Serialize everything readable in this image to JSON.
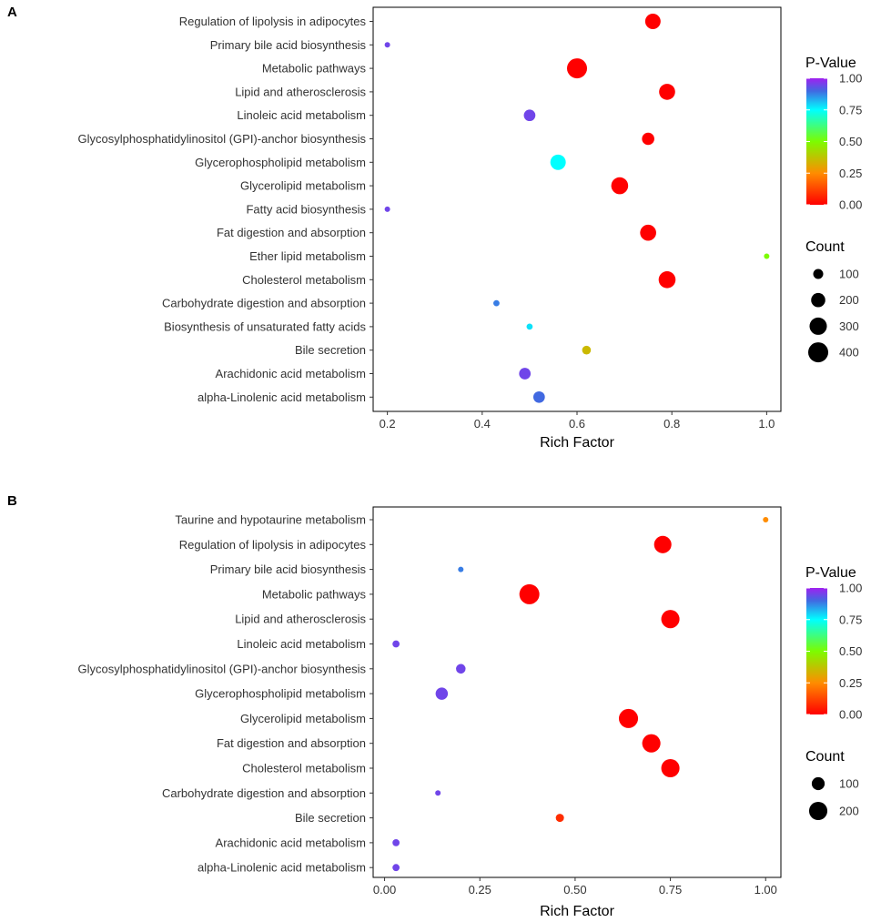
{
  "chart_data": [
    {
      "panel": "A",
      "type": "scatter",
      "xlabel": "Rich Factor",
      "xlim": [
        0.17,
        1.03
      ],
      "xticks": [
        0.2,
        0.4,
        0.6,
        0.8,
        1.0
      ],
      "xtick_labels": [
        "0.2",
        "0.4",
        "0.6",
        "0.8",
        "1.0"
      ],
      "categories": [
        "Regulation of lipolysis in adipocytes",
        "Primary bile acid biosynthesis",
        "Metabolic pathways",
        "Lipid and atherosclerosis",
        "Linoleic acid metabolism",
        "Glycosylphosphatidylinositol (GPI)-anchor biosynthesis",
        "Glycerophospholipid metabolism",
        "Glycerolipid metabolism",
        "Fatty acid biosynthesis",
        "Fat digestion and absorption",
        "Ether lipid metabolism",
        "Cholesterol metabolism",
        "Carbohydrate digestion and absorption",
        "Biosynthesis of unsaturated fatty acids",
        "Bile secretion",
        "Arachidonic acid metabolism",
        "alpha-Linolenic acid metabolism"
      ],
      "points": [
        {
          "category": "Regulation of lipolysis in adipocytes",
          "rich_factor": 0.76,
          "p_value": 0.0,
          "count": 250
        },
        {
          "category": "Primary bile acid biosynthesis",
          "rich_factor": 0.2,
          "p_value": 0.95,
          "count": 25
        },
        {
          "category": "Metabolic pathways",
          "rich_factor": 0.6,
          "p_value": 0.0,
          "count": 420
        },
        {
          "category": "Lipid and atherosclerosis",
          "rich_factor": 0.79,
          "p_value": 0.0,
          "count": 270
        },
        {
          "category": "Linoleic acid metabolism",
          "rich_factor": 0.5,
          "p_value": 0.95,
          "count": 140
        },
        {
          "category": "Glycosylphosphatidylinositol (GPI)-anchor biosynthesis",
          "rich_factor": 0.75,
          "p_value": 0.0,
          "count": 160
        },
        {
          "category": "Glycerophospholipid metabolism",
          "rich_factor": 0.56,
          "p_value": 0.75,
          "count": 250
        },
        {
          "category": "Glycerolipid metabolism",
          "rich_factor": 0.69,
          "p_value": 0.0,
          "count": 300
        },
        {
          "category": "Fatty acid biosynthesis",
          "rich_factor": 0.2,
          "p_value": 0.95,
          "count": 25
        },
        {
          "category": "Fat digestion and absorption",
          "rich_factor": 0.75,
          "p_value": 0.0,
          "count": 270
        },
        {
          "category": "Ether lipid metabolism",
          "rich_factor": 1.0,
          "p_value": 0.5,
          "count": 25
        },
        {
          "category": "Cholesterol metabolism",
          "rich_factor": 0.79,
          "p_value": 0.0,
          "count": 300
        },
        {
          "category": "Carbohydrate digestion and absorption",
          "rich_factor": 0.43,
          "p_value": 0.88,
          "count": 40
        },
        {
          "category": "Biosynthesis of unsaturated fatty acids",
          "rich_factor": 0.5,
          "p_value": 0.78,
          "count": 40
        },
        {
          "category": "Bile secretion",
          "rich_factor": 0.62,
          "p_value": 0.35,
          "count": 80
        },
        {
          "category": "Arachidonic acid metabolism",
          "rich_factor": 0.49,
          "p_value": 0.95,
          "count": 140
        },
        {
          "category": "alpha-Linolenic acid metabolism",
          "rich_factor": 0.52,
          "p_value": 0.9,
          "count": 140
        }
      ],
      "legend": {
        "color_title": "P-Value",
        "color_ticks": [
          "1.00",
          "0.75",
          "0.50",
          "0.25",
          "0.00"
        ],
        "size_title": "Count",
        "size_ticks": [
          100,
          200,
          300,
          400
        ],
        "size_tick_labels": [
          "100",
          "200",
          "300",
          "400"
        ]
      }
    },
    {
      "panel": "B",
      "type": "scatter",
      "xlabel": "Rich Factor",
      "xlim": [
        -0.03,
        1.04
      ],
      "xticks": [
        0.0,
        0.25,
        0.5,
        0.75,
        1.0
      ],
      "xtick_labels": [
        "0.00",
        "0.25",
        "0.50",
        "0.75",
        "1.00"
      ],
      "categories": [
        "Taurine and hypotaurine metabolism",
        "Regulation of lipolysis in adipocytes",
        "Primary bile acid biosynthesis",
        "Metabolic pathways",
        "Lipid and atherosclerosis",
        "Linoleic acid metabolism",
        "Glycosylphosphatidylinositol (GPI)-anchor biosynthesis",
        "Glycerophospholipid metabolism",
        "Glycerolipid metabolism",
        "Fat digestion and absorption",
        "Cholesterol metabolism",
        "Carbohydrate digestion and absorption",
        "Bile secretion",
        "Arachidonic acid metabolism",
        "alpha-Linolenic acid metabolism"
      ],
      "points": [
        {
          "category": "Taurine and hypotaurine metabolism",
          "rich_factor": 1.0,
          "p_value": 0.25,
          "count": 12
        },
        {
          "category": "Regulation of lipolysis in adipocytes",
          "rich_factor": 0.73,
          "p_value": 0.0,
          "count": 180
        },
        {
          "category": "Primary bile acid biosynthesis",
          "rich_factor": 0.2,
          "p_value": 0.88,
          "count": 12
        },
        {
          "category": "Metabolic pathways",
          "rich_factor": 0.38,
          "p_value": 0.0,
          "count": 240
        },
        {
          "category": "Lipid and atherosclerosis",
          "rich_factor": 0.75,
          "p_value": 0.0,
          "count": 200
        },
        {
          "category": "Linoleic acid metabolism",
          "rich_factor": 0.03,
          "p_value": 0.95,
          "count": 30
        },
        {
          "category": "Glycosylphosphatidylinositol (GPI)-anchor biosynthesis",
          "rich_factor": 0.2,
          "p_value": 0.95,
          "count": 55
        },
        {
          "category": "Glycerophospholipid metabolism",
          "rich_factor": 0.15,
          "p_value": 0.95,
          "count": 90
        },
        {
          "category": "Glycerolipid metabolism",
          "rich_factor": 0.64,
          "p_value": 0.0,
          "count": 220
        },
        {
          "category": "Fat digestion and absorption",
          "rich_factor": 0.7,
          "p_value": 0.0,
          "count": 200
        },
        {
          "category": "Cholesterol metabolism",
          "rich_factor": 0.75,
          "p_value": 0.0,
          "count": 200
        },
        {
          "category": "Carbohydrate digestion and absorption",
          "rich_factor": 0.14,
          "p_value": 0.95,
          "count": 12
        },
        {
          "category": "Bile secretion",
          "rich_factor": 0.46,
          "p_value": 0.08,
          "count": 40
        },
        {
          "category": "Arachidonic acid metabolism",
          "rich_factor": 0.03,
          "p_value": 0.95,
          "count": 30
        },
        {
          "category": "alpha-Linolenic acid metabolism",
          "rich_factor": 0.03,
          "p_value": 0.95,
          "count": 30
        }
      ],
      "legend": {
        "color_title": "P-Value",
        "color_ticks": [
          "1.00",
          "0.75",
          "0.50",
          "0.25",
          "0.00"
        ],
        "size_title": "Count",
        "size_ticks": [
          100,
          200
        ],
        "size_tick_labels": [
          "100",
          "200"
        ]
      }
    }
  ],
  "colors": {
    "gradient_stops": [
      "#ff0000",
      "#ff8c00",
      "#7cfc00",
      "#00ffff",
      "#4169e1",
      "#a020f0"
    ],
    "panel_border": "#000000",
    "text": "#333333"
  }
}
